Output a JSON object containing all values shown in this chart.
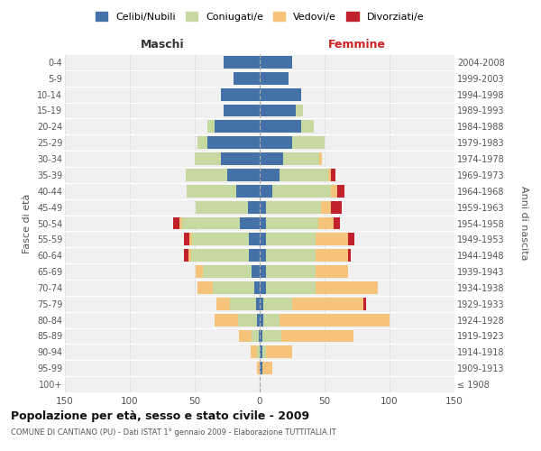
{
  "age_groups": [
    "100+",
    "95-99",
    "90-94",
    "85-89",
    "80-84",
    "75-79",
    "70-74",
    "65-69",
    "60-64",
    "55-59",
    "50-54",
    "45-49",
    "40-44",
    "35-39",
    "30-34",
    "25-29",
    "20-24",
    "15-19",
    "10-14",
    "5-9",
    "0-4"
  ],
  "birth_years": [
    "≤ 1908",
    "1909-1913",
    "1914-1918",
    "1919-1923",
    "1924-1928",
    "1929-1933",
    "1934-1938",
    "1939-1943",
    "1944-1948",
    "1949-1953",
    "1954-1958",
    "1959-1963",
    "1964-1968",
    "1969-1973",
    "1974-1978",
    "1979-1983",
    "1984-1988",
    "1989-1993",
    "1994-1998",
    "1999-2003",
    "2004-2008"
  ],
  "maschi": {
    "celibi": [
      0,
      0,
      0,
      1,
      2,
      3,
      4,
      6,
      8,
      8,
      15,
      9,
      18,
      25,
      30,
      40,
      35,
      28,
      30,
      20,
      28
    ],
    "coniugati": [
      0,
      0,
      2,
      5,
      15,
      20,
      32,
      38,
      45,
      44,
      45,
      40,
      38,
      32,
      20,
      8,
      5,
      0,
      0,
      0,
      0
    ],
    "vedovi": [
      0,
      2,
      5,
      10,
      18,
      10,
      12,
      5,
      2,
      2,
      2,
      0,
      0,
      0,
      0,
      0,
      0,
      0,
      0,
      0,
      0
    ],
    "divorziati": [
      0,
      0,
      0,
      0,
      0,
      0,
      0,
      0,
      3,
      4,
      5,
      0,
      0,
      0,
      0,
      0,
      0,
      0,
      0,
      0,
      0
    ]
  },
  "femmine": {
    "nubili": [
      0,
      2,
      2,
      2,
      3,
      3,
      5,
      5,
      5,
      5,
      5,
      5,
      10,
      15,
      18,
      25,
      32,
      28,
      32,
      22,
      25
    ],
    "coniugate": [
      0,
      0,
      3,
      15,
      12,
      22,
      38,
      38,
      38,
      38,
      40,
      42,
      45,
      38,
      28,
      25,
      10,
      5,
      0,
      0,
      0
    ],
    "vedove": [
      0,
      8,
      20,
      55,
      85,
      55,
      48,
      25,
      25,
      25,
      12,
      8,
      5,
      2,
      2,
      0,
      0,
      0,
      0,
      0,
      0
    ],
    "divorziate": [
      0,
      0,
      0,
      0,
      0,
      2,
      0,
      0,
      2,
      5,
      5,
      8,
      5,
      3,
      0,
      0,
      0,
      0,
      0,
      0,
      0
    ]
  },
  "colors": {
    "celibi_nubili": "#4472A8",
    "coniugati": "#C5D9A0",
    "vedovi": "#F5C47A",
    "divorziati": "#C0212A"
  },
  "xlim": 150,
  "title": "Popolazione per età, sesso e stato civile - 2009",
  "subtitle": "COMUNE DI CANTIANO (PU) - Dati ISTAT 1° gennaio 2009 - Elaborazione TUTTITALIA.IT",
  "ylabel_left": "Fasce di età",
  "ylabel_right": "Anni di nascita",
  "xlabel_left": "Maschi",
  "xlabel_right": "Femmine",
  "legend_labels": [
    "Celibi/Nubili",
    "Coniugati/e",
    "Vedovi/e",
    "Divorziati/e"
  ],
  "background_color": "#f0f0f0"
}
